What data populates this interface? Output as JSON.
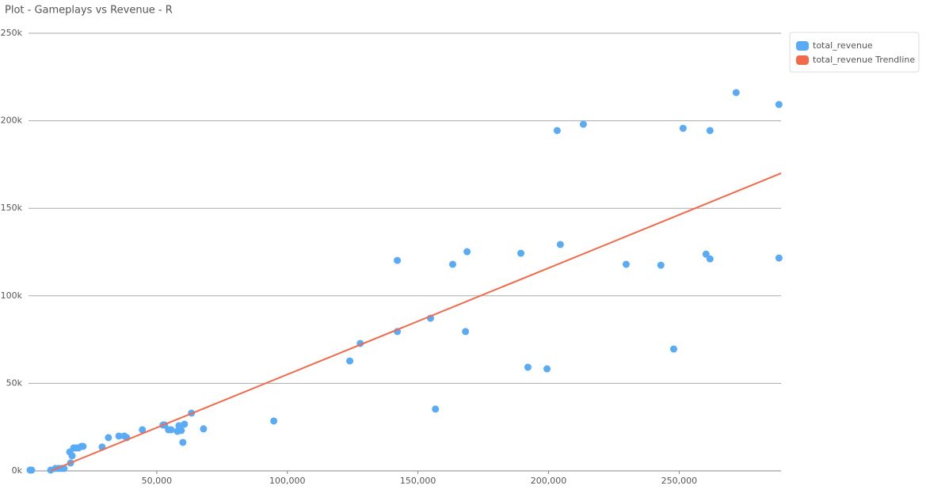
{
  "chart_data": {
    "type": "scatter",
    "title": "Plot - Gameplays vs Revenue - R",
    "xlim": [
      0,
      289000
    ],
    "ylim": [
      0,
      250000
    ],
    "xticks": [
      {
        "value": 50000,
        "label": "50,000"
      },
      {
        "value": 100000,
        "label": "100,000"
      },
      {
        "value": 150000,
        "label": "150,000"
      },
      {
        "value": 200000,
        "label": "200,000"
      },
      {
        "value": 250000,
        "label": "250,000"
      }
    ],
    "yticks": [
      {
        "value": 0,
        "label": "0k"
      },
      {
        "value": 50000,
        "label": "50k"
      },
      {
        "value": 100000,
        "label": "100k"
      },
      {
        "value": 150000,
        "label": "150k"
      },
      {
        "value": 200000,
        "label": "200k"
      },
      {
        "value": 250000,
        "label": "250k"
      }
    ],
    "grid": true,
    "legend": "top-right",
    "series": [
      {
        "name": "total_revenue",
        "color": "#5aabf5",
        "mode": "markers",
        "x": [
          1500,
          2100,
          9400,
          11200,
          12400,
          13600,
          14500,
          17000,
          16700,
          17600,
          18200,
          19100,
          20000,
          21200,
          21800,
          29100,
          31500,
          35500,
          37600,
          38500,
          44500,
          52400,
          53000,
          54500,
          55500,
          57900,
          58500,
          59400,
          60600,
          60000,
          63300,
          67900,
          94800,
          123900,
          127900,
          142100,
          142100,
          154800,
          156700,
          163300,
          168200,
          168800,
          189400,
          192100,
          199400,
          203300,
          213300,
          204500,
          229700,
          243000,
          247900,
          251500,
          260300,
          261800,
          261800,
          271800,
          288200,
          288200
        ],
        "values": [
          450,
          450,
          450,
          1400,
          1400,
          1400,
          1400,
          4500,
          10800,
          8600,
          13100,
          13100,
          13100,
          14000,
          14000,
          13600,
          19000,
          19900,
          19900,
          19000,
          23500,
          26200,
          26200,
          23500,
          23500,
          22600,
          25800,
          23100,
          26700,
          16300,
          33000,
          24000,
          28500,
          62800,
          72800,
          120200,
          79600,
          87200,
          35300,
          118000,
          79600,
          125200,
          124300,
          59200,
          58300,
          194400,
          198000,
          129300,
          118000,
          117500,
          69600,
          195700,
          123800,
          194400,
          121100,
          216100,
          209300,
          121600
        ]
      },
      {
        "name": "total_revenue Trendline",
        "color": "#f26a4b",
        "mode": "lines",
        "x": [
          9400,
          289000
        ],
        "values": [
          0,
          170000
        ]
      }
    ]
  }
}
